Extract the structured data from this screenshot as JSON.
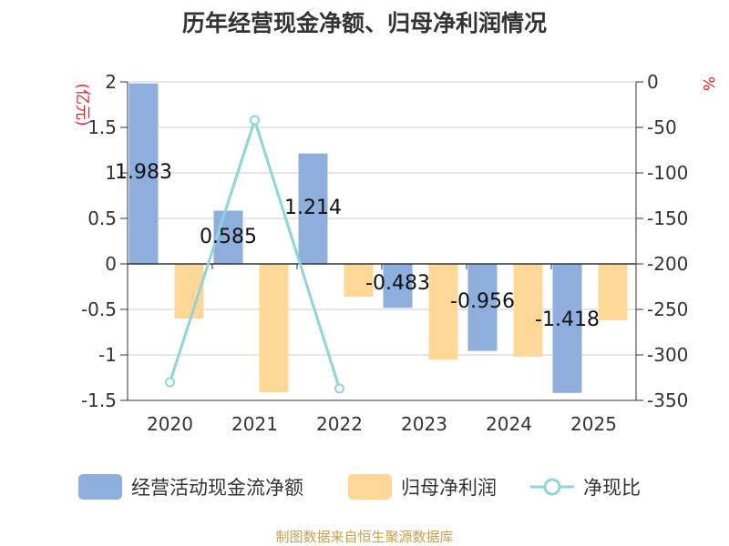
{
  "title": "历年经营现金净额、归母净利润情况",
  "footer": "制图数据来自恒生聚源数据库",
  "colors": {
    "bar_cash": "#8eaede",
    "bar_profit": "#ffd898",
    "line_ratio": "#8dd5d9",
    "axis": "#333333",
    "grid": "#cccccc",
    "unit_red": "#e8212d"
  },
  "legend": [
    {
      "label": "经营活动现金流净额",
      "type": "bar",
      "color_key": "bar_cash"
    },
    {
      "label": "归母净利润",
      "type": "bar",
      "color_key": "bar_profit"
    },
    {
      "label": "净现比",
      "type": "line",
      "color_key": "line_ratio"
    }
  ],
  "chart_data": {
    "type": "bar",
    "categories": [
      "2020",
      "2021",
      "2022",
      "2023",
      "2024",
      "2025"
    ],
    "series": [
      {
        "name": "经营活动现金流净额",
        "type": "bar",
        "axis": "left",
        "values": [
          1.983,
          0.585,
          1.214,
          -0.483,
          -0.956,
          -1.418
        ],
        "labels": [
          "1.983",
          "0.585",
          "1.214",
          "-0.483",
          "-0.956",
          "-1.418"
        ]
      },
      {
        "name": "归母净利润",
        "type": "bar",
        "axis": "left",
        "values": [
          -0.6,
          -1.41,
          -0.36,
          -1.05,
          -1.02,
          -0.62
        ]
      },
      {
        "name": "净现比",
        "type": "line",
        "axis": "right",
        "values": [
          -330,
          -42,
          -337,
          null,
          null,
          null
        ]
      }
    ],
    "y_left": {
      "label": "(亿元)",
      "min": -1.5,
      "max": 2,
      "ticks": [
        2,
        1.5,
        1,
        0.5,
        0,
        -0.5,
        -1,
        -1.5
      ],
      "tick_labels": [
        "2",
        "1.5",
        "1",
        "0.5",
        "0",
        "-0.5",
        "-1",
        "-1.5"
      ]
    },
    "y_right": {
      "label": "%",
      "min": -350,
      "max": 0,
      "ticks": [
        0,
        -50,
        -100,
        -150,
        -200,
        -250,
        -300,
        -350
      ],
      "tick_labels": [
        "0",
        "-50",
        "-100",
        "-150",
        "-200",
        "-250",
        "-300",
        "-350"
      ]
    },
    "grid": true,
    "legend_position": "bottom"
  }
}
